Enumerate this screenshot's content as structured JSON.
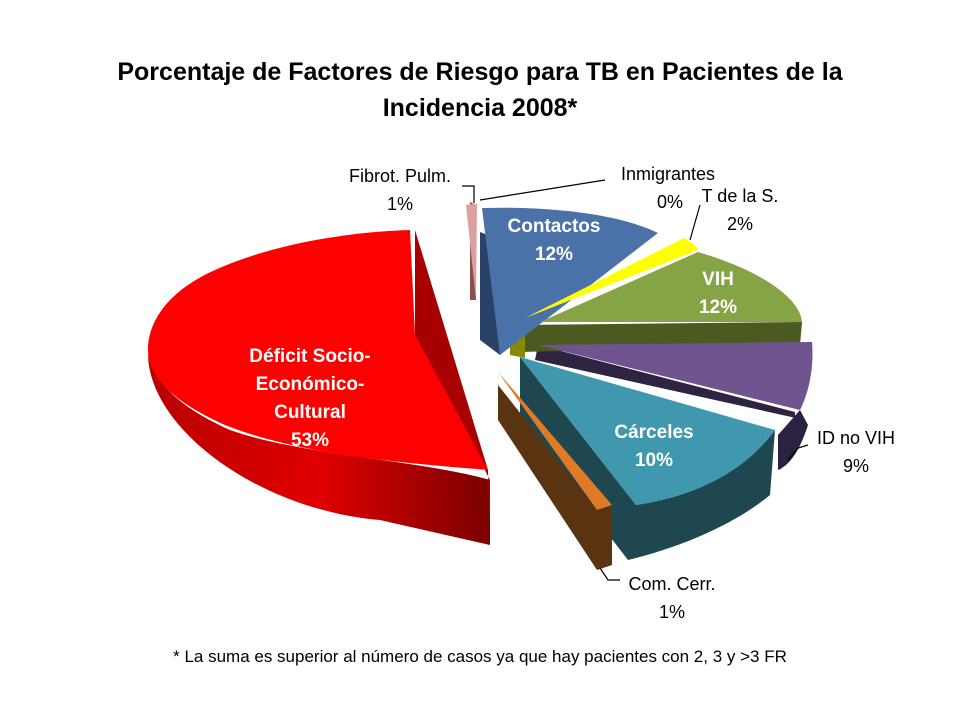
{
  "chart_data": {
    "type": "pie",
    "title": "Porcentaje de Factores de Riesgo para TB en Pacientes de la Incidencia 2008*",
    "footnote": "* La suma es superior al número de casos ya que hay pacientes con 2, 3 y >3 FR",
    "slices": [
      {
        "label": "Inmigrantes",
        "label_lines": [
          "Inmigrantes"
        ],
        "value_label": "0%",
        "value": 0,
        "color": "#ffffff",
        "label_inside": false
      },
      {
        "label": "T de la S.",
        "label_lines": [
          "T de la S."
        ],
        "value_label": "2%",
        "value": 2,
        "color": "#ffff00",
        "label_inside": false
      },
      {
        "label": "VIH",
        "label_lines": [
          "VIH"
        ],
        "value_label": "12%",
        "value": 12,
        "color": "#86a345",
        "label_inside": true
      },
      {
        "label": "ID no VIH",
        "label_lines": [
          "ID no VIH"
        ],
        "value_label": "9%",
        "value": 9,
        "color": "#6f548f",
        "label_inside": false
      },
      {
        "label": "Cárceles",
        "label_lines": [
          "Cárceles"
        ],
        "value_label": "10%",
        "value": 10,
        "color": "#3f98ad",
        "label_inside": true
      },
      {
        "label": "Com. Cerr.",
        "label_lines": [
          "Com. Cerr."
        ],
        "value_label": "1%",
        "value": 1,
        "color": "#e07a26",
        "label_inside": false
      },
      {
        "label": "Déficit Socio-Económico-Cultural",
        "label_lines": [
          "Déficit Socio-",
          "Económico-",
          "Cultural"
        ],
        "value_label": "53%",
        "value": 53,
        "color": "#ff0000",
        "label_inside": true
      },
      {
        "label": "Fibrot. Pulm.",
        "label_lines": [
          "Fibrot. Pulm."
        ],
        "value_label": "1%",
        "value": 1,
        "color": "#dca0a0",
        "label_inside": false
      },
      {
        "label": "Contactos",
        "label_lines": [
          "Contactos"
        ],
        "value_label": "12%",
        "value": 12,
        "color": "#4a72a8",
        "label_inside": true
      }
    ]
  }
}
